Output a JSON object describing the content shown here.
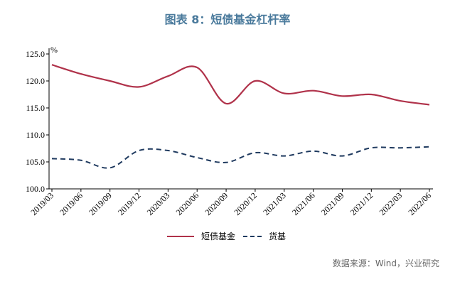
{
  "chart_data": {
    "type": "line",
    "title": "图表 8：短债基金杠杆率",
    "ylabel": "%",
    "ylim": [
      100.0,
      125.0
    ],
    "yticks": [
      "100.0",
      "105.0",
      "110.0",
      "115.0",
      "120.0",
      "125.0"
    ],
    "categories": [
      "2019/03",
      "2019/06",
      "2019/09",
      "2019/12",
      "2020/03",
      "2020/06",
      "2020/09",
      "2020/12",
      "2021/03",
      "2021/06",
      "2021/09",
      "2021/12",
      "2022/03",
      "2022/06"
    ],
    "series": [
      {
        "name": "短债基金",
        "color": "#b0324a",
        "style": "solid",
        "values": [
          123.0,
          121.3,
          120.0,
          118.9,
          120.9,
          122.5,
          115.8,
          120.0,
          117.7,
          118.2,
          117.2,
          117.5,
          116.3,
          115.6
        ]
      },
      {
        "name": "货基",
        "color": "#1f3a5f",
        "style": "dashed",
        "values": [
          105.6,
          105.3,
          103.9,
          107.1,
          107.1,
          105.8,
          104.9,
          106.7,
          106.1,
          107.0,
          106.1,
          107.6,
          107.6,
          107.8
        ]
      }
    ],
    "grid": false,
    "legend": "bottom"
  },
  "source": "数据来源：Wind，兴业研究"
}
